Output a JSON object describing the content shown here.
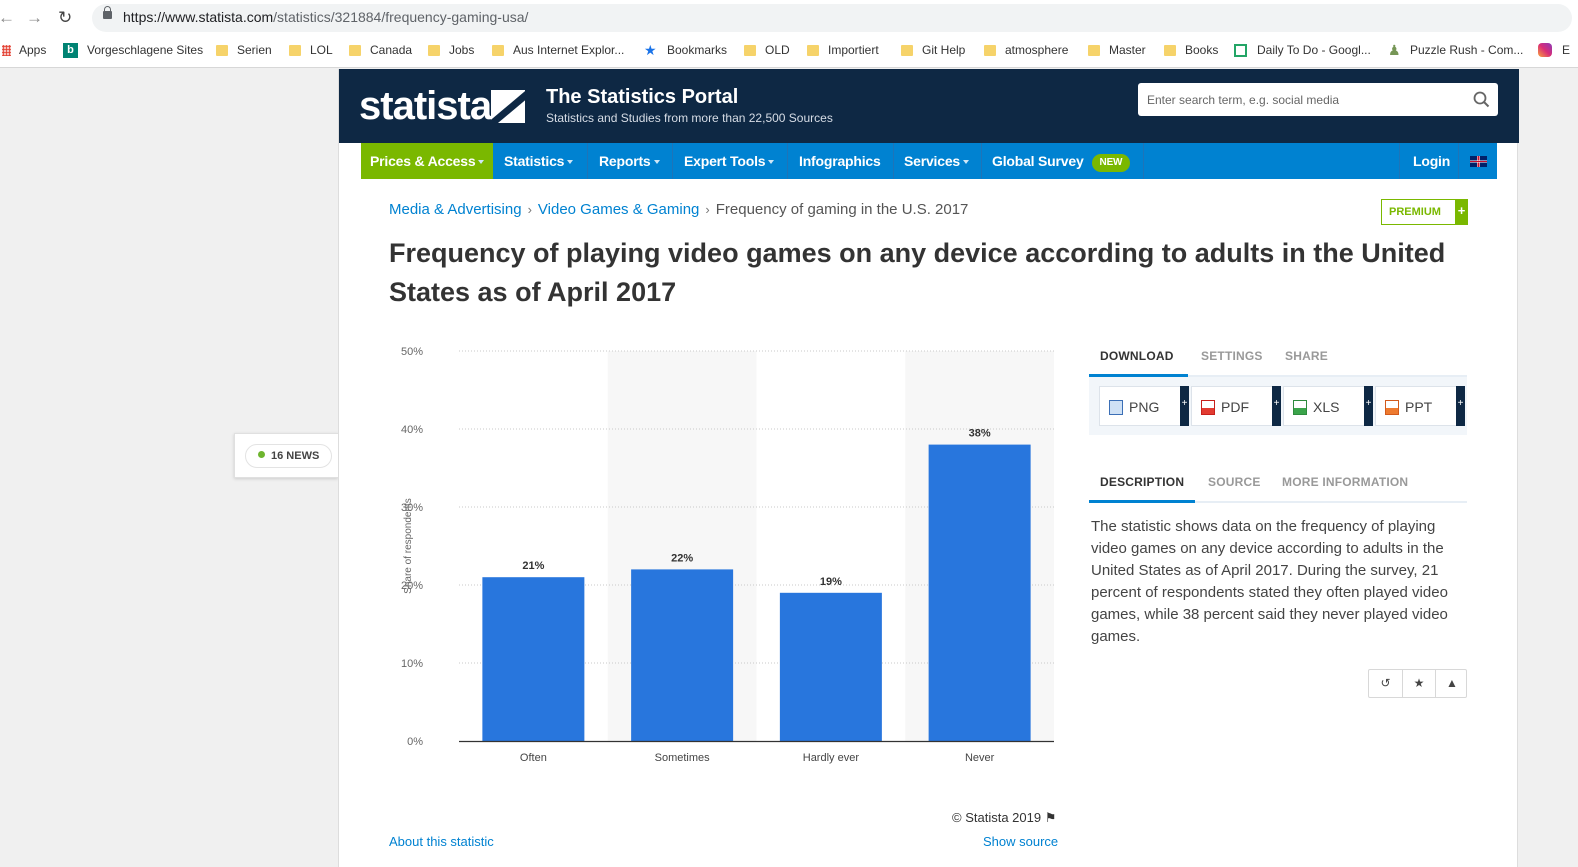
{
  "browser": {
    "url_host": "https://www.statista.com",
    "url_path": "/statistics/321884/frequency-gaming-usa/",
    "bookmarks": [
      "Apps",
      "Vorgeschlagene Sites",
      "Serien",
      "LOL",
      "Canada",
      "Jobs",
      "Aus Internet Explor...",
      "Bookmarks",
      "OLD",
      "Importiert",
      "Git Help",
      "atmosphere",
      "Master",
      "Books",
      "Daily To Do - Googl...",
      "Puzzle Rush - Com...",
      "E"
    ]
  },
  "header": {
    "logo": "statista",
    "title": "The Statistics Portal",
    "subtitle": "Statistics and Studies from more than 22,500 Sources",
    "search_placeholder": "Enter search term, e.g. social media"
  },
  "nav": {
    "prices": "Prices & Access",
    "statistics": "Statistics",
    "reports": "Reports",
    "expert_tools": "Expert Tools",
    "infographics": "Infographics",
    "services": "Services",
    "global_survey": "Global Survey",
    "new_badge": "NEW",
    "login": "Login"
  },
  "news": {
    "label": "16 NEWS"
  },
  "breadcrumb": {
    "level1": "Media & Advertising",
    "level2": "Video Games & Gaming",
    "current": "Frequency of gaming in the U.S. 2017"
  },
  "premium": {
    "label": "PREMIUM",
    "plus": "+"
  },
  "page_title": "Frequency of playing video games on any device according to adults in the United States as of April 2017",
  "chart_data": {
    "type": "bar",
    "title": "",
    "categories": [
      "Often",
      "Sometimes",
      "Hardly ever",
      "Never"
    ],
    "values": [
      21,
      22,
      19,
      38
    ],
    "value_labels": [
      "21%",
      "22%",
      "19%",
      "38%"
    ],
    "ylabel": "Share of respondents",
    "xlabel": "",
    "ylim": [
      0,
      50
    ],
    "yticks": [
      "0%",
      "10%",
      "20%",
      "30%",
      "40%",
      "50%"
    ],
    "grid": true,
    "bar_color": "#2876dd"
  },
  "chart_footer": {
    "copyright": "© Statista 2019",
    "about": "About this statistic",
    "show_source": "Show source"
  },
  "download": {
    "tabs": [
      "DOWNLOAD",
      "SETTINGS",
      "SHARE"
    ],
    "buttons": [
      "PNG",
      "PDF",
      "XLS",
      "PPT"
    ],
    "plus": "+"
  },
  "description": {
    "tabs": [
      "DESCRIPTION",
      "SOURCE",
      "MORE INFORMATION"
    ],
    "text": "The statistic shows data on the frequency of playing video games on any device according to adults in the United States as of April 2017. During the survey, 21 percent of respondents stated they often played video games, while 38 percent said they never played video games."
  },
  "colors": {
    "navy": "#0e2844",
    "blue": "#0082d1",
    "green": "#7ab800",
    "bar": "#2876dd"
  }
}
